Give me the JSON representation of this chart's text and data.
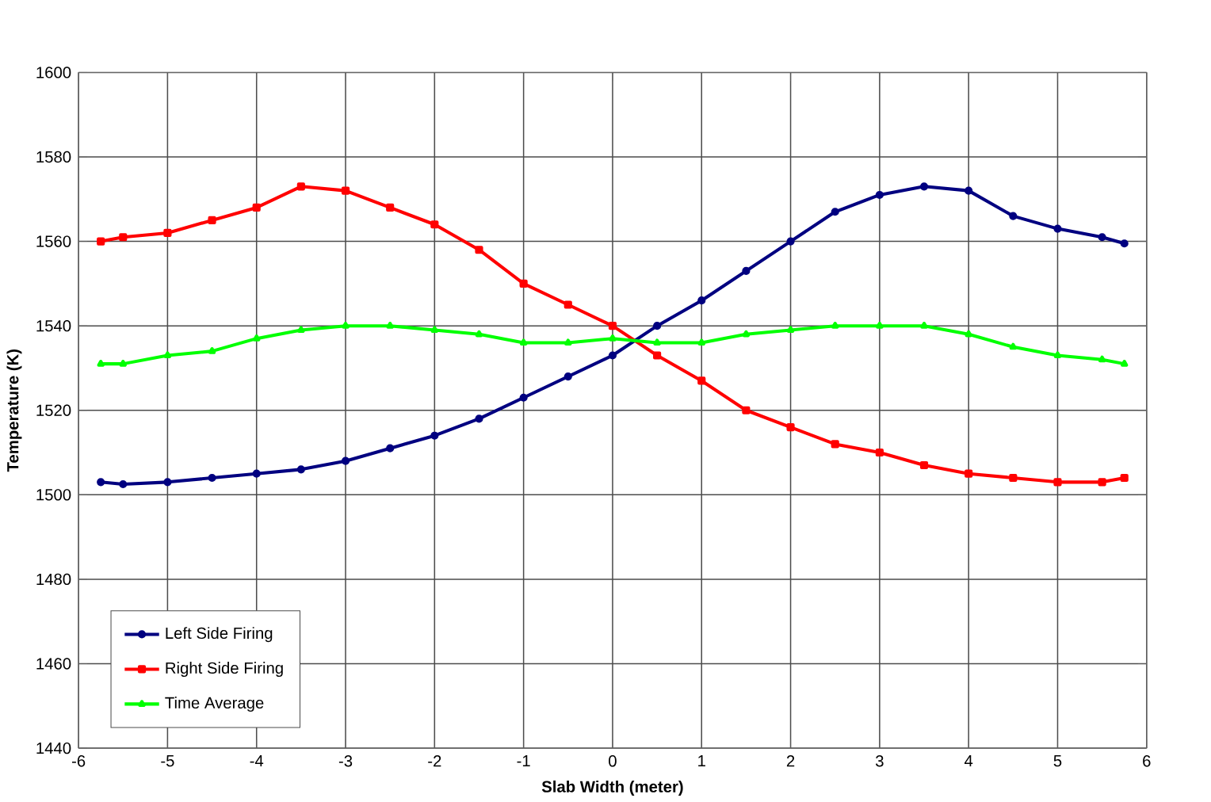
{
  "chart_data": {
    "type": "line",
    "xlabel": "Slab Width (meter)",
    "ylabel": "Temperature (K)",
    "xlim": [
      -6,
      6
    ],
    "xticks": [
      -6,
      -5,
      -4,
      -3,
      -2,
      -1,
      0,
      1,
      2,
      3,
      4,
      5,
      6
    ],
    "ylim": [
      1440,
      1600
    ],
    "yticks": [
      1440,
      1460,
      1480,
      1500,
      1520,
      1540,
      1560,
      1580,
      1600
    ],
    "grid": true,
    "legend": "bottom left",
    "x": [
      -5.75,
      -5.5,
      -5,
      -4.5,
      -4,
      -3.5,
      -3,
      -2.5,
      -2,
      -1.5,
      -1,
      -0.5,
      0,
      0.5,
      1,
      1.5,
      2,
      2.5,
      3,
      3.5,
      4,
      4.5,
      5,
      5.5,
      5.75
    ],
    "series": [
      {
        "name": "Left Side Firing",
        "color": "#000080",
        "marker": "circle",
        "values": [
          1503,
          1502.5,
          1503,
          1504,
          1505,
          1506,
          1508,
          1511,
          1514,
          1518,
          1523,
          1528,
          1533,
          1540,
          1546,
          1553,
          1560,
          1567,
          1571,
          1573,
          1572,
          1566,
          1563,
          1561,
          1559.5
        ]
      },
      {
        "name": "Right Side Firing",
        "color": "#ff0000",
        "marker": "square",
        "values": [
          1560,
          1561,
          1562,
          1565,
          1568,
          1573,
          1572,
          1568,
          1564,
          1558,
          1550,
          1545,
          1540,
          1533,
          1527,
          1520,
          1516,
          1512,
          1510,
          1507,
          1505,
          1504,
          1503,
          1503,
          1504
        ]
      },
      {
        "name": "Time Average",
        "color": "#00ff00",
        "marker": "triangle",
        "values": [
          1531,
          1531,
          1533,
          1534,
          1537,
          1539,
          1540,
          1540,
          1539,
          1538,
          1536,
          1536,
          1537,
          1536,
          1536,
          1538,
          1539,
          1540,
          1540,
          1540,
          1538,
          1535,
          1533,
          1532,
          1531
        ]
      }
    ]
  }
}
